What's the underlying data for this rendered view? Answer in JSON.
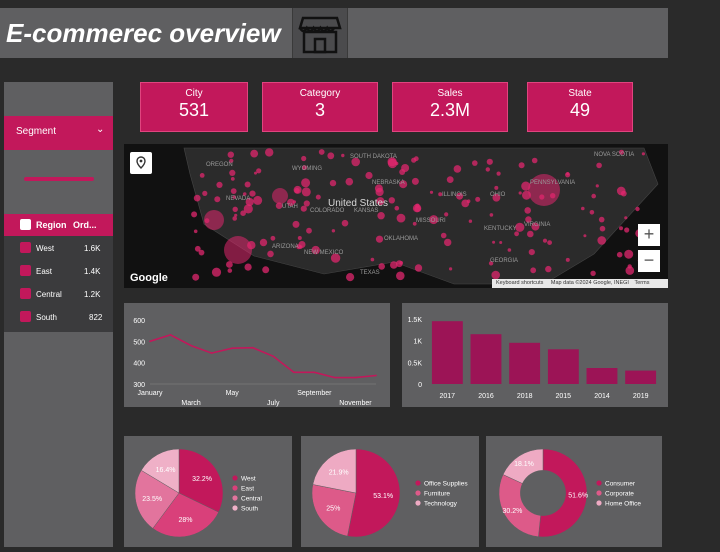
{
  "header": {
    "title": "E-commerec overview"
  },
  "kpis": [
    {
      "label": "City",
      "value": "531"
    },
    {
      "label": "Category",
      "value": "3"
    },
    {
      "label": "Sales",
      "value": "2.3M"
    },
    {
      "label": "State",
      "value": "49"
    }
  ],
  "sidebar": {
    "segment_label": "Segment",
    "region_header": "Region",
    "orders_header": "Ord...",
    "regions": [
      {
        "name": "West",
        "orders": "1.6K"
      },
      {
        "name": "East",
        "orders": "1.4K"
      },
      {
        "name": "Central",
        "orders": "1.2K"
      },
      {
        "name": "South",
        "orders": "822"
      }
    ]
  },
  "map": {
    "labels": [
      "OREGON",
      "WYOMING",
      "SOUTH DAKOTA",
      "NEBRASKA",
      "UTAH",
      "COLORADO",
      "KANSAS",
      "NEVADA",
      "ARIZONA",
      "NEW MEXICO",
      "OKLAHOMA",
      "TEXAS",
      "MISSOURI",
      "ILLINOIS",
      "OHIO",
      "PENNSYLVANIA",
      "VIRGINIA",
      "KENTUCKY",
      "GEORGIA",
      "NOVA SCOTIA",
      "United States"
    ],
    "brand": "Google",
    "footer": [
      "Keyboard shortcuts",
      "Map data ©2024 Google, INEGI",
      "Terms"
    ],
    "zoom_in": "+",
    "zoom_out": "−"
  },
  "colors": {
    "accent": "#c2185b",
    "panel": "#5f5f61",
    "bg": "#2a2a2a"
  },
  "chart_data": [
    {
      "type": "line",
      "x": [
        "January",
        "February",
        "March",
        "April",
        "May",
        "June",
        "July",
        "August",
        "September",
        "October",
        "November",
        "December"
      ],
      "x_tick_labels": [
        "January",
        "March",
        "May",
        "July",
        "September",
        "November"
      ],
      "values": [
        500,
        530,
        480,
        445,
        468,
        470,
        430,
        355,
        355,
        330,
        330,
        340
      ],
      "ylim": [
        300,
        600
      ],
      "yticks": [
        "600",
        "500",
        "400",
        "300"
      ],
      "color": "#c2185b"
    },
    {
      "type": "bar",
      "categories": [
        "2017",
        "2016",
        "2018",
        "2015",
        "2014",
        "2019"
      ],
      "values": [
        1450,
        1150,
        950,
        800,
        370,
        310
      ],
      "ylim": [
        0,
        1500
      ],
      "yticks": [
        "1.5K",
        "1K",
        "0.5K",
        "0"
      ],
      "color": "#9c1456"
    },
    {
      "type": "pie",
      "categories": [
        "West",
        "East",
        "Central",
        "South"
      ],
      "values": [
        32.2,
        28,
        23.5,
        16.4
      ],
      "labels": [
        "32.2%",
        "28%",
        "23.5%",
        "16.4%"
      ],
      "colors": [
        "#c2185b",
        "#d9407a",
        "#e2749d",
        "#efb0c7"
      ]
    },
    {
      "type": "pie",
      "categories": [
        "Office Supplies",
        "Furniture",
        "Technology"
      ],
      "values": [
        53.1,
        25,
        21.9
      ],
      "labels": [
        "53.1%",
        "25%",
        "21.9%"
      ],
      "colors": [
        "#c2185b",
        "#dd5a89",
        "#eeaac3"
      ]
    },
    {
      "type": "pie",
      "donut": true,
      "categories": [
        "Consumer",
        "Corporate",
        "Home Office"
      ],
      "values": [
        51.6,
        30.2,
        18.1
      ],
      "labels": [
        "51.6%",
        "30.2%",
        "18.1%"
      ],
      "colors": [
        "#c2185b",
        "#dd5a89",
        "#eeaac3"
      ]
    }
  ]
}
